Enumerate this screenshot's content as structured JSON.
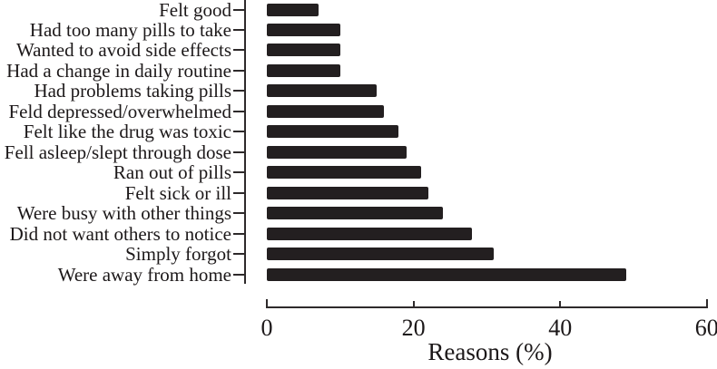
{
  "figure": {
    "background": "#ffffff",
    "bar_color": "#231f20",
    "axis_color": "#2e2a2b",
    "text_color": "#1c1819"
  },
  "chart_data": {
    "type": "bar",
    "orientation": "horizontal",
    "title": "",
    "xlabel": "Reasons (%)",
    "ylabel": "",
    "xlim": [
      0,
      60
    ],
    "x_ticks": [
      0,
      20,
      40,
      60
    ],
    "grid": false,
    "legend": false,
    "categories": [
      "Felt good",
      "Had too many pills to take",
      "Wanted to avoid side effects",
      "Had a change in daily routine",
      "Had problems taking pills",
      "Feld depressed/overwhelmed",
      "Felt like the drug was toxic",
      "Fell asleep/slept through dose",
      "Ran out of pills",
      "Felt sick or ill",
      "Were busy with other things",
      "Did not want others to notice",
      "Simply forgot",
      "Were away from home"
    ],
    "values": [
      7,
      10,
      10,
      10,
      15,
      16,
      18,
      19,
      21,
      22,
      24,
      28,
      31,
      49
    ]
  }
}
